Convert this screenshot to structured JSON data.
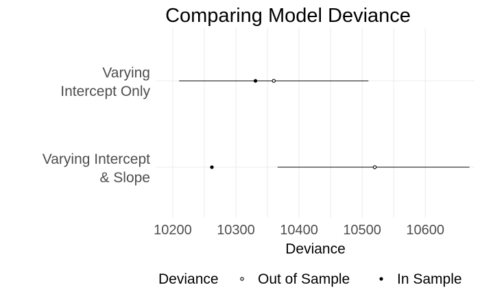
{
  "chart_data": {
    "type": "scatter",
    "title": "Comparing Model Deviance",
    "xlabel": "Deviance",
    "ylabel": "",
    "xlim": [
      10174,
      10678
    ],
    "xticks": [
      10200,
      10300,
      10400,
      10500,
      10600
    ],
    "xtick_labels": [
      "10200",
      "10300",
      "10400",
      "10500",
      "10600"
    ],
    "categories": [
      [
        "Varying",
        "Intercept Only"
      ],
      [
        "Varying Intercept",
        "& Slope"
      ]
    ],
    "series": [
      {
        "name": "Out of Sample",
        "marker": "open-circle",
        "values": [
          10360,
          10520
        ]
      },
      {
        "name": "In Sample",
        "marker": "filled-circle",
        "values": [
          10331,
          10262
        ]
      }
    ],
    "intervals": [
      {
        "category_index": 0,
        "low": 10210,
        "high": 10510
      },
      {
        "category_index": 1,
        "low": 10366,
        "high": 10670
      }
    ],
    "legend": {
      "title": "Deviance",
      "position": "bottom"
    },
    "grid": true
  }
}
